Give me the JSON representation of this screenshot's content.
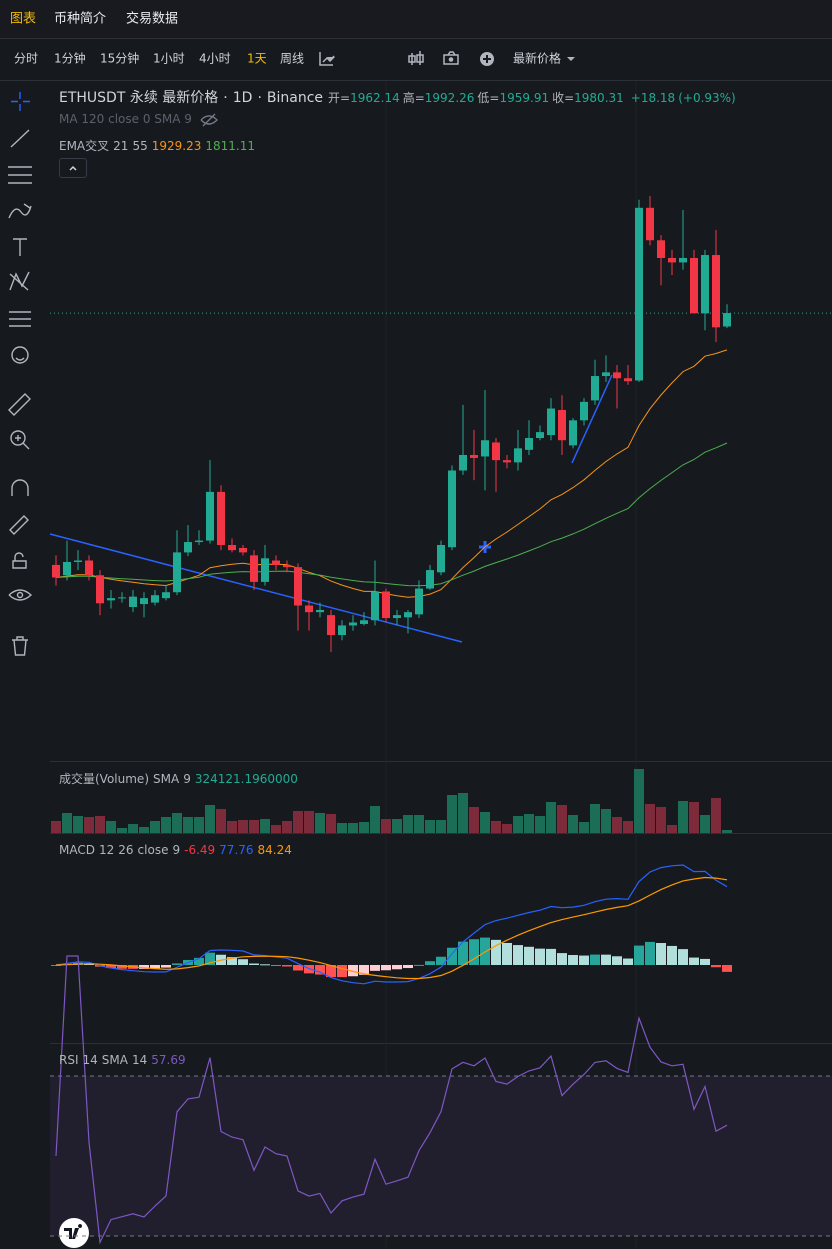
{
  "tabs": [
    "图表",
    "币种简介",
    "交易数据"
  ],
  "active_tab": 0,
  "intervals": [
    "分时",
    "1分钟",
    "15分钟",
    "1小时",
    "4小时",
    "1天",
    "周线"
  ],
  "active_interval": 5,
  "price_type": "最新价格",
  "legend": {
    "symbol": "ETHUSDT 永续 最新价格",
    "separator": "·",
    "interval": "1D",
    "exchange": "Binance",
    "ohlc_labels": [
      "开=",
      "高=",
      "低=",
      "收="
    ],
    "change": "+18.18",
    "change_pct": "(+0.93%)"
  },
  "ma_indicator": "MA 120 close 0 SMA 9",
  "ema": {
    "label": "EMA交叉",
    "periods": [
      21,
      55
    ],
    "values": [
      1929.23,
      1811.11
    ],
    "colors": [
      "#f7931a",
      "#4caf50"
    ]
  },
  "volume_indicator": {
    "label": "成交量(Volume)",
    "ma": "SMA",
    "period": 9,
    "value": "324121.1960000"
  },
  "macd": {
    "label": "MACD",
    "fast": 12,
    "slow": 26,
    "source": "close",
    "signal": 9,
    "values": [
      -6.49,
      77.76,
      84.24
    ]
  },
  "rsi": {
    "label": "RSI",
    "period": 14,
    "ma": "SMA",
    "ma_period": 14,
    "value": 57.69,
    "bands": [
      70,
      30
    ]
  },
  "colors": {
    "up": "#22ab94",
    "down": "#f23645",
    "volume_up": "#1b6d56",
    "volume_down": "#7d2a3a"
  },
  "candles": {
    "open": [
      1639,
      1625,
      1643,
      1645,
      1625,
      1591,
      1594,
      1582,
      1586,
      1588,
      1594,
      1602,
      1656,
      1670,
      1672,
      1738,
      1666,
      1662,
      1652,
      1616,
      1645,
      1639,
      1636,
      1584,
      1575,
      1571,
      1544,
      1557,
      1559,
      1564,
      1603,
      1567,
      1568,
      1572,
      1607,
      1629,
      1663,
      1767,
      1788,
      1786,
      1805,
      1781,
      1778,
      1795,
      1811,
      1815,
      1849,
      1801,
      1835,
      1862,
      1895,
      1900,
      1892,
      1889,
      2123,
      2079,
      2055,
      2049,
      2055,
      1980,
      2059,
      1962.14
    ],
    "high": [
      1652,
      1672,
      1659,
      1652,
      1632,
      1605,
      1602,
      1605,
      1602,
      1605,
      1611,
      1686,
      1693,
      1686,
      1781,
      1747,
      1675,
      1666,
      1659,
      1666,
      1652,
      1645,
      1641,
      1591,
      1588,
      1578,
      1564,
      1571,
      1575,
      1645,
      1607,
      1578,
      1578,
      1618,
      1639,
      1672,
      1774,
      1856,
      1822,
      1876,
      1811,
      1788,
      1822,
      1835,
      1828,
      1865,
      1869,
      1838,
      1865,
      1917,
      1923,
      1910,
      1910,
      2134,
      2139,
      2086,
      2066,
      2120,
      2066,
      2066,
      2093,
      1992.26
    ],
    "low": [
      1611,
      1618,
      1632,
      1618,
      1571,
      1580,
      1588,
      1575,
      1568,
      1584,
      1591,
      1598,
      1651,
      1666,
      1668,
      1659,
      1656,
      1652,
      1605,
      1611,
      1632,
      1629,
      1550,
      1550,
      1568,
      1521,
      1537,
      1550,
      1557,
      1557,
      1561,
      1557,
      1546,
      1567,
      1605,
      1625,
      1659,
      1761,
      1754,
      1740,
      1738,
      1770,
      1767,
      1788,
      1808,
      1808,
      1788,
      1797,
      1828,
      1856,
      1887,
      1851,
      1883,
      1887,
      2072,
      2018,
      2032,
      2039,
      2000,
      1957,
      1941,
      1959.91
    ],
    "close": [
      1622,
      1643,
      1645,
      1625,
      1587,
      1594,
      1595,
      1596,
      1594,
      1598,
      1602,
      1656,
      1670,
      1672,
      1738,
      1666,
      1659,
      1656,
      1616,
      1648,
      1639,
      1636,
      1584,
      1575,
      1578,
      1544,
      1557,
      1561,
      1564,
      1603,
      1567,
      1571,
      1575,
      1607,
      1632,
      1666,
      1767,
      1788,
      1784,
      1808,
      1781,
      1778,
      1797,
      1811,
      1819,
      1851,
      1808,
      1835,
      1860,
      1895,
      1900,
      1892,
      1888,
      2123,
      2079,
      2055,
      2049,
      2055,
      1980,
      2059,
      1961,
      1980.31
    ],
    "volume": [
      156000,
      260000,
      221000,
      208000,
      221000,
      156000,
      65000,
      117000,
      78000,
      156000,
      208000,
      260000,
      208000,
      208000,
      364000,
      312000,
      156000,
      169000,
      169000,
      182000,
      104000,
      156000,
      286000,
      286000,
      260000,
      247000,
      130000,
      130000,
      143000,
      351000,
      182000,
      182000,
      234000,
      234000,
      169000,
      169000,
      494000,
      520000,
      338000,
      273000,
      156000,
      117000,
      221000,
      247000,
      221000,
      403000,
      364000,
      234000,
      143000,
      377000,
      312000,
      208000,
      156000,
      832000,
      377000,
      338000,
      104000,
      416000,
      403000,
      234000,
      455000,
      39000
    ]
  }
}
